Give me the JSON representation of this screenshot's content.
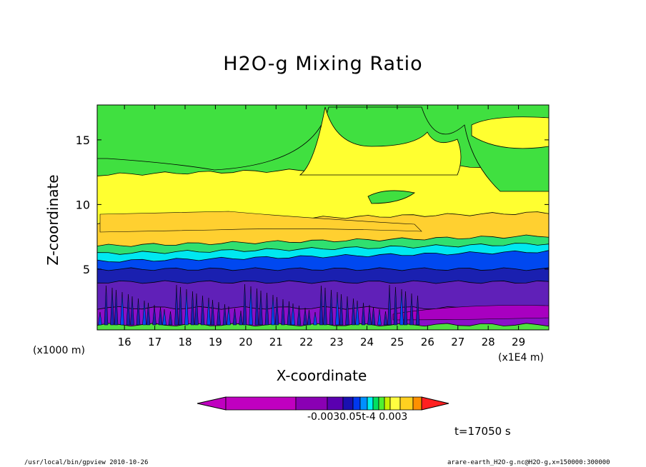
{
  "chart_data": {
    "type": "heatmap",
    "title": "H2O-g Mixing Ratio",
    "xlabel": "X-coordinate",
    "ylabel": "Z-coordinate",
    "x_unit": "(x1000 m)",
    "x_multiplier": "(x1E4 m)",
    "x_ticks": [
      "16",
      "17",
      "18",
      "19",
      "20",
      "21",
      "22",
      "23",
      "24",
      "25",
      "26",
      "27",
      "28",
      "29"
    ],
    "y_ticks": [
      "5",
      "10",
      "15"
    ],
    "xlim": [
      15.1,
      30.0
    ],
    "ylim": [
      0.3,
      17.7
    ],
    "colorbar": {
      "colors": [
        "#c000c0",
        "#8a00b4",
        "#5a00b0",
        "#1a10b0",
        "#0038f0",
        "#0090ff",
        "#00f0f0",
        "#00e060",
        "#50f030",
        "#c8f000",
        "#ffff40",
        "#ffd020",
        "#ff9000",
        "#ff2020"
      ],
      "labels_text": "-0.0030.05t-4 0.003"
    },
    "bands": [
      {
        "name": "surface",
        "z": [
          0.3,
          0.7
        ],
        "color": "#50e040"
      },
      {
        "name": "deep-purple",
        "z": [
          0.7,
          2.0
        ],
        "color": "#8a10c8"
      },
      {
        "name": "purple",
        "z": [
          2.0,
          4.0
        ],
        "color": "#6020b8"
      },
      {
        "name": "dark-blue",
        "z": [
          4.0,
          5.0
        ],
        "color": "#1a20b0"
      },
      {
        "name": "blue",
        "z": [
          5.0,
          5.6
        ],
        "color": "#0048f0"
      },
      {
        "name": "cyan",
        "z": [
          5.6,
          6.2
        ],
        "color": "#00e8f0"
      },
      {
        "name": "green",
        "z": [
          6.2,
          6.8
        ],
        "color": "#30e070"
      },
      {
        "name": "orange",
        "z": [
          6.8,
          8.6
        ],
        "color": "#ffd030"
      },
      {
        "name": "yellow",
        "z": [
          8.6,
          12.3
        ],
        "color": "#ffff30"
      },
      {
        "name": "upper-green",
        "z": [
          12.3,
          17.7
        ],
        "color": "#40e040"
      }
    ],
    "time_label": "t=17050 s"
  },
  "footer": {
    "left": "/usr/local/bin/gpview  2010-10-26",
    "right": "arare-earth_H2O-g.nc@H2O-g,x=150000:300000"
  }
}
